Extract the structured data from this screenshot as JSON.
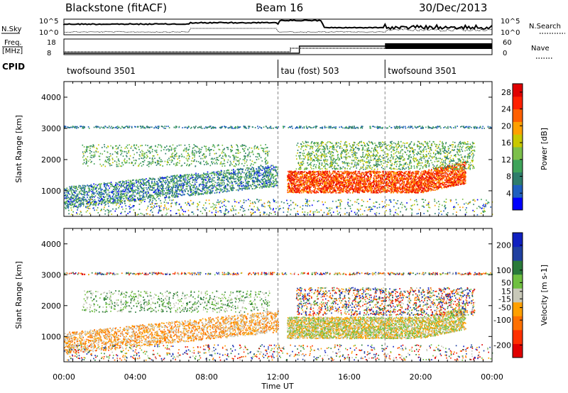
{
  "header": {
    "station": "Blackstone (fitACF)",
    "beam": "Beam 16",
    "date": "30/Dec/2013"
  },
  "noise_panel": {
    "left_label": "N.Sky",
    "left_ticks": [
      "10^5",
      "10^0"
    ],
    "right_ticks": [
      "10^5",
      "10^0"
    ],
    "right_label": "N.Search"
  },
  "freq_panel": {
    "left_label_1": "Freq.",
    "left_label_2": "[MHz]",
    "left_ticks": [
      "18",
      "8"
    ],
    "right_ticks": [
      "60",
      "0"
    ],
    "right_label": "Nave"
  },
  "cpid": {
    "label": "CPID",
    "segments": [
      {
        "name": "twofsound 3501",
        "start_hour": 0
      },
      {
        "name": "tau (fost) 503",
        "start_hour": 12
      },
      {
        "name": "twofsound 3501",
        "start_hour": 18
      }
    ]
  },
  "colors": {
    "power": [
      "#0000ff",
      "#1f5fbf",
      "#2e7d6b",
      "#3fa35a",
      "#7cc04a",
      "#c8c800",
      "#ffa000",
      "#ff6000",
      "#ff2000",
      "#e00000"
    ],
    "velocity": [
      "#1020c0",
      "#2040a0",
      "#2a7a3a",
      "#70c040",
      "#c8c8b8",
      "#ffa000",
      "#ff7000",
      "#ff3000",
      "#e00000"
    ]
  },
  "chart_data": [
    {
      "type": "heatmap",
      "title": "Power",
      "ylabel": "Slant Range [km]",
      "xlim_hours": [
        0,
        24
      ],
      "ylim": [
        180,
        4500
      ],
      "yticks": [
        1000,
        2000,
        3000,
        4000
      ],
      "colorbar": {
        "label": "Power [dB]",
        "range": [
          0,
          30
        ],
        "ticks": [
          4,
          8,
          12,
          16,
          20,
          24,
          28
        ]
      },
      "features": [
        {
          "start_hour": 0,
          "end_hour": 12,
          "range_km": [
            500,
            1500
          ],
          "level": "4-16 dB"
        },
        {
          "start_hour": 12.5,
          "end_hour": 22.5,
          "range_km": [
            900,
            1700
          ],
          "level": "20-30 dB"
        },
        {
          "start_hour": 0,
          "end_hour": 24,
          "range_km": [
            3000,
            3100
          ],
          "level": "4-12 dB"
        }
      ]
    },
    {
      "type": "heatmap",
      "title": "Velocity",
      "ylabel": "Slant Range [km]",
      "xlabel": "Time UT",
      "xticks": [
        "00:00",
        "04:00",
        "08:00",
        "12:00",
        "16:00",
        "20:00",
        "00:00"
      ],
      "xlim_hours": [
        0,
        24
      ],
      "ylim": [
        180,
        4500
      ],
      "yticks": [
        1000,
        2000,
        3000,
        4000
      ],
      "colorbar": {
        "label": "Velocity [m s-1]",
        "range": [
          -250,
          250
        ],
        "ticks": [
          200,
          100,
          50,
          15,
          -15,
          -50,
          -100,
          -200
        ]
      },
      "features": [
        {
          "start_hour": 3,
          "end_hour": 11,
          "range_km": [
            600,
            1300
          ],
          "level": "-50 to -100 m/s"
        },
        {
          "start_hour": 12.5,
          "end_hour": 22.5,
          "range_km": [
            900,
            1700
          ],
          "level": "-15 to 15 m/s"
        }
      ]
    }
  ]
}
